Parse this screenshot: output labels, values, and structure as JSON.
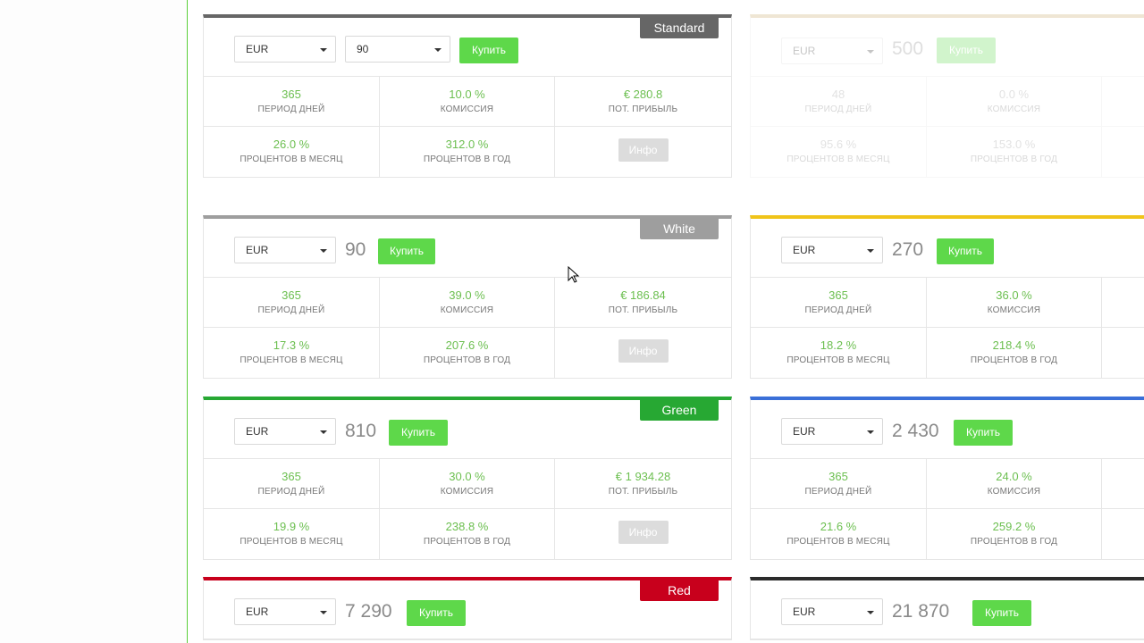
{
  "common": {
    "currency": "EUR",
    "buy_label": "Купить",
    "info_label": "Инфо",
    "labels": {
      "days": "ПЕРИОД ДНЕЙ",
      "commission": "КОМИССИЯ",
      "profit": "ПОТ. ПРИБЫЛЬ",
      "monthly": "ПРОЦЕНТОВ В МЕСЯЦ",
      "yearly": "ПРОЦЕНТОВ В ГОД"
    }
  },
  "colors": {
    "accent_green": "#5ed84a",
    "value_green": "#6cbf50",
    "standard": "#666666",
    "white": "#9e9e9e",
    "green": "#27a833",
    "red": "#c8001c",
    "yellow": "#f0c419",
    "blue": "#3a6fd8",
    "black": "#2b2b2b"
  },
  "cards": {
    "standard": {
      "badge": "Standard",
      "amount": "90",
      "days": "365",
      "commission": "10.0 %",
      "profit": "€ 280.8",
      "monthly": "26.0 %",
      "yearly": "312.0 %"
    },
    "faded": {
      "amount": "500",
      "days": "48",
      "commission": "0.0 %",
      "monthly": "95.6 %",
      "yearly": "153.0 %"
    },
    "white": {
      "badge": "White",
      "amount": "90",
      "days": "365",
      "commission": "39.0 %",
      "profit": "€ 186.84",
      "monthly": "17.3 %",
      "yearly": "207.6 %"
    },
    "yellow": {
      "amount": "270",
      "days": "365",
      "commission": "36.0 %",
      "monthly": "18.2 %",
      "yearly": "218.4 %"
    },
    "green": {
      "badge": "Green",
      "amount": "810",
      "days": "365",
      "commission": "30.0 %",
      "profit": "€ 1 934.28",
      "monthly": "19.9 %",
      "yearly": "238.8 %"
    },
    "blue": {
      "amount": "2 430",
      "days": "365",
      "commission": "24.0 %",
      "monthly": "21.6 %",
      "yearly": "259.2 %"
    },
    "red": {
      "badge": "Red",
      "amount": "7 290"
    },
    "black": {
      "amount": "21 870"
    }
  }
}
